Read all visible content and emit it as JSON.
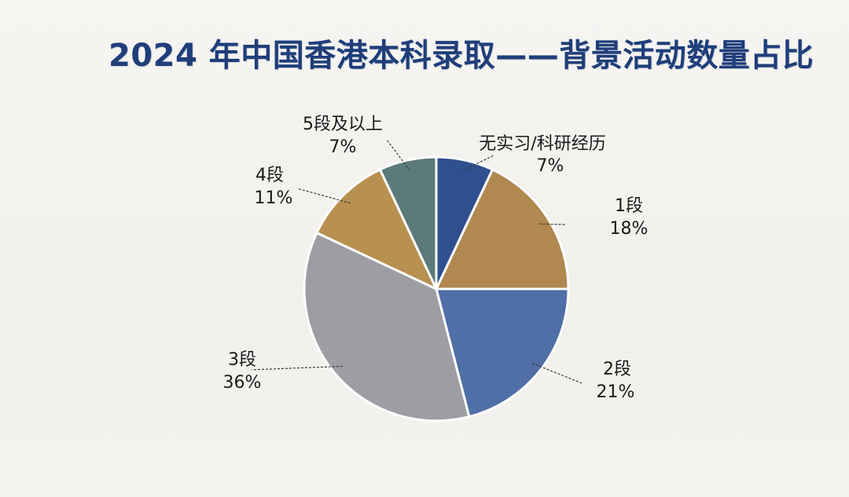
{
  "chart_data": {
    "type": "pie",
    "title": "2024 年中国香港本科录取——背景活动数量占比",
    "start_angle_deg": 0,
    "direction": "clockwise",
    "slices": [
      {
        "label": "无实习/科研经历",
        "value": 7,
        "value_label": "7%",
        "color": "#2f4f8f"
      },
      {
        "label": "1段",
        "value": 18,
        "value_label": "18%",
        "color": "#b08850"
      },
      {
        "label": "2段",
        "value": 21,
        "value_label": "21%",
        "color": "#4f6fa6"
      },
      {
        "label": "3段",
        "value": 36,
        "value_label": "36%",
        "color": "#9d9ea4"
      },
      {
        "label": "4段",
        "value": 11,
        "value_label": "11%",
        "color": "#b8904f"
      },
      {
        "label": "5段及以上",
        "value": 7,
        "value_label": "7%",
        "color": "#5d7a7a"
      }
    ],
    "legend": "none"
  }
}
